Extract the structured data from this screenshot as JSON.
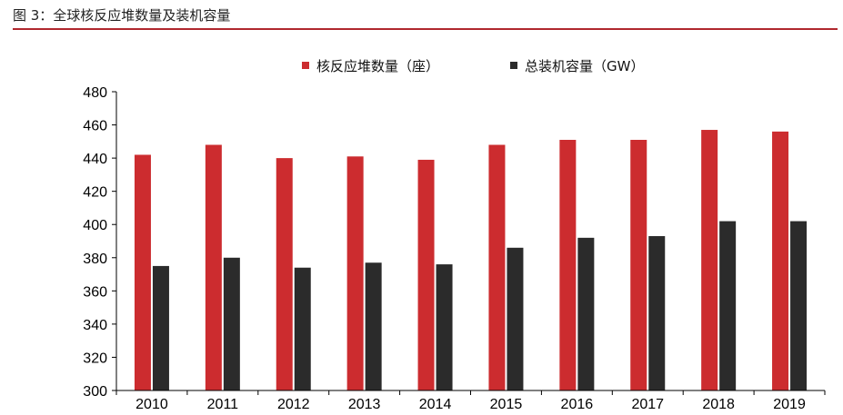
{
  "figure": {
    "title": "图 3：全球核反应堆数量及装机容量"
  },
  "colors": {
    "series1": "#cc2c2f",
    "series2": "#2b2b2b",
    "title_rule": "#b0272e",
    "axis": "#000000"
  },
  "chart_data": {
    "type": "bar",
    "title": "",
    "xlabel": "",
    "ylabel": "",
    "ylim": [
      300,
      480
    ],
    "yticks": [
      "300",
      "320",
      "340",
      "360",
      "380",
      "400",
      "420",
      "440",
      "460",
      "480"
    ],
    "categories": [
      "2010",
      "2011",
      "2012",
      "2013",
      "2014",
      "2015",
      "2016",
      "2017",
      "2018",
      "2019"
    ],
    "series": [
      {
        "name": "核反应堆数量（座）",
        "values": [
          442,
          448,
          440,
          441,
          439,
          448,
          451,
          451,
          457,
          456
        ]
      },
      {
        "name": "总装机容量（GW）",
        "values": [
          375,
          380,
          374,
          377,
          376,
          386,
          392,
          393,
          402,
          402
        ]
      }
    ],
    "legend_position": "top-center",
    "grid": false
  }
}
